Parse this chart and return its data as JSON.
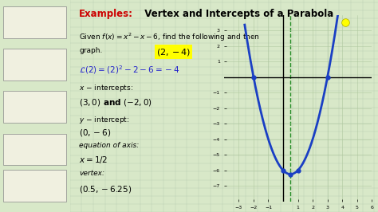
{
  "title_red": "Examples:",
  "title_black": "  Vertex and Intercepts of a Parabola",
  "bg_color": "#d8e8c8",
  "panel_color": "#e8f0e0",
  "left_panel_color": "#c8d8b8",
  "highlight_color": "#ffff00",
  "curve_color": "#1a3fc4",
  "dot_color": "#1a3fc4",
  "axis_line_color": "#228B22",
  "graph_xlim": [
    -4,
    6
  ],
  "graph_ylim": [
    -8,
    4
  ],
  "graph_xticks": [
    -3,
    -2,
    -1,
    1,
    2,
    3,
    4,
    5,
    6
  ],
  "graph_yticks": [
    -7,
    -6,
    -5,
    -4,
    -3,
    -2,
    -1,
    1,
    2,
    3
  ],
  "key_points": [
    [
      -2,
      0
    ],
    [
      0,
      -6
    ],
    [
      0.5,
      -6.25
    ],
    [
      1,
      -6
    ],
    [
      3,
      0
    ]
  ]
}
